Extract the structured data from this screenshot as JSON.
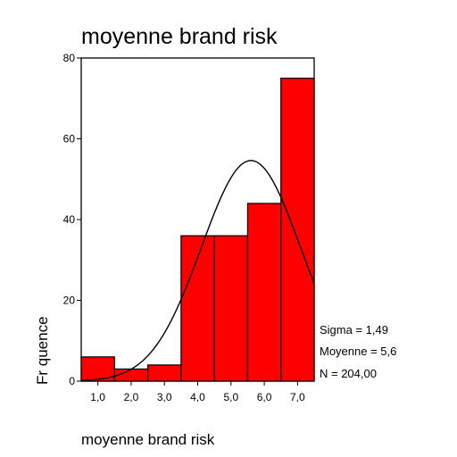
{
  "chart_data": {
    "type": "bar",
    "subtype": "histogram-with-normal-curve",
    "title": "moyenne brand risk",
    "xlabel": "moyenne brand risk",
    "ylabel": "Fr quence",
    "categories": [
      "1,0",
      "2,0",
      "3,0",
      "4,0",
      "5,0",
      "6,0",
      "7,0"
    ],
    "bins": [
      1.0,
      2.0,
      3.0,
      4.0,
      5.0,
      6.0,
      7.0
    ],
    "bin_width": 1.0,
    "values": [
      6,
      3,
      4,
      36,
      36,
      44,
      75
    ],
    "y_ticks": [
      0,
      20,
      40,
      60,
      80
    ],
    "ylim": [
      0,
      80
    ],
    "xlim": [
      0.5,
      7.5
    ],
    "normal_curve": {
      "mean": 5.6,
      "sigma": 1.49,
      "n": 204
    },
    "stats": [
      "Sigma = 1,49",
      "Moyenne = 5,6",
      "N = 204,00"
    ],
    "bar_color": "#ff0000",
    "grid": false
  }
}
